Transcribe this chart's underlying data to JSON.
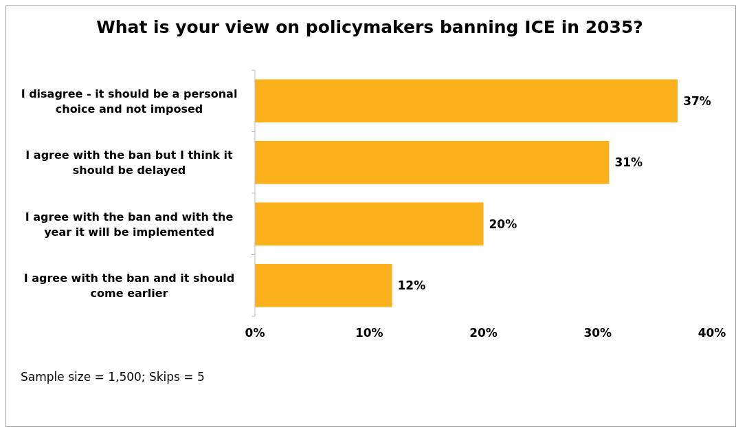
{
  "chart_data": {
    "type": "bar",
    "orientation": "horizontal",
    "title": "What is your view on policymakers banning ICE in 2035?",
    "categories": [
      "I disagree - it should be a personal choice and not imposed",
      "I agree with the ban but I think it should be delayed",
      "I agree with the ban and with the year it will be implemented",
      "I agree with the ban and it should come earlier"
    ],
    "values": [
      37,
      31,
      20,
      12
    ],
    "value_labels": [
      "37%",
      "31%",
      "20%",
      "12%"
    ],
    "color": "#fbb11b",
    "xlim": [
      0,
      40
    ],
    "xticks": [
      {
        "value": 0,
        "label": "0%"
      },
      {
        "value": 10,
        "label": "10%"
      },
      {
        "value": 20,
        "label": "20%"
      },
      {
        "value": 30,
        "label": "30%"
      },
      {
        "value": 40,
        "label": "40%"
      }
    ],
    "grid": false,
    "annotations": [
      "Sample size = 1,500; Skips = 5"
    ]
  }
}
